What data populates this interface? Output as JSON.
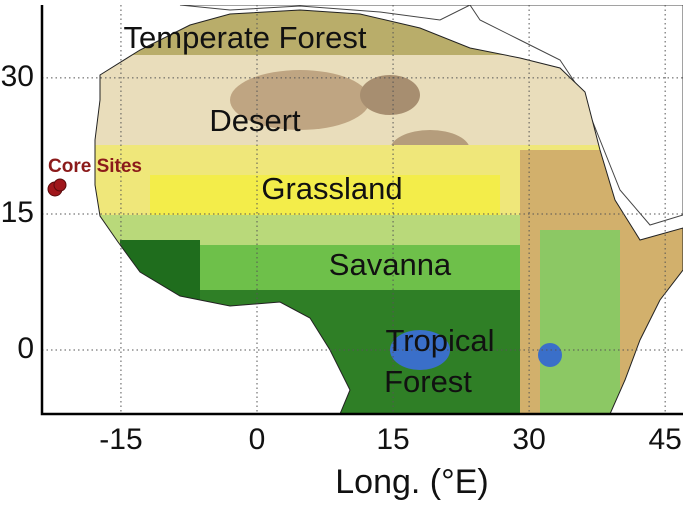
{
  "map": {
    "xlabel": "Long. (°E)",
    "xticks": [
      -15,
      0,
      15,
      30,
      45
    ],
    "yticks": [
      30,
      15,
      0
    ],
    "marker_label": "Core Sites",
    "regions": [
      {
        "lines": [
          "Temperate Forest"
        ]
      },
      {
        "lines": [
          "Desert"
        ]
      },
      {
        "lines": [
          "Grassland"
        ]
      },
      {
        "lines": [
          "Savanna"
        ]
      },
      {
        "lines": [
          "Tropical",
          "Forest"
        ]
      }
    ]
  }
}
